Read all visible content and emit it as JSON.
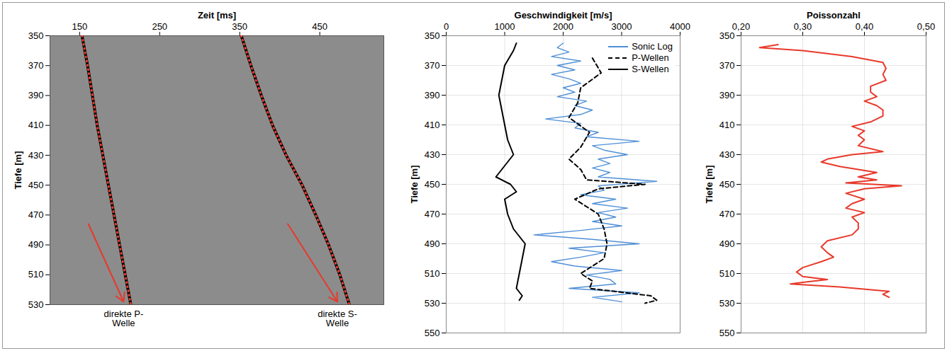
{
  "chart_data": [
    {
      "type": "line",
      "x_label": "Zeit [ms]",
      "y_label": "Tiefe [m]",
      "xlim": [
        113,
        530
      ],
      "xticks": [
        150,
        250,
        350,
        450
      ],
      "ylim": [
        350,
        530
      ],
      "yticks": [
        350,
        370,
        390,
        410,
        430,
        450,
        470,
        490,
        510,
        530
      ],
      "grid": false,
      "series": [
        {
          "color": "#e8392b",
          "line_style": "dotted",
          "x": [
            153,
            160,
            166,
            172,
            179,
            186,
            193,
            200,
            207,
            214
          ],
          "y": [
            350,
            370,
            390,
            410,
            430,
            450,
            470,
            490,
            510,
            530
          ]
        },
        {
          "color": "#e8392b",
          "line_style": "dotted",
          "x": [
            352,
            364,
            377,
            391,
            408,
            428,
            445,
            461,
            475,
            487
          ],
          "y": [
            350,
            370,
            390,
            410,
            430,
            450,
            470,
            490,
            510,
            530
          ]
        }
      ],
      "annotations": [
        {
          "text": "direkte P-Welle",
          "color": "#e8392b",
          "x1": 161,
          "y1": 476,
          "x2": 205,
          "y2": 528
        },
        {
          "text": "direkte S-Welle",
          "color": "#e8392b",
          "x1": 410,
          "y1": 476,
          "x2": 472,
          "y2": 528
        }
      ]
    },
    {
      "type": "line",
      "x_label": "Geschwindigkeit [m/s]",
      "y_label": "Tiefe [m]",
      "xlim": [
        0,
        4000
      ],
      "xticks": [
        0,
        1000,
        2000,
        3000,
        4000
      ],
      "ylim": [
        350,
        550
      ],
      "yticks": [
        350,
        370,
        390,
        410,
        430,
        450,
        470,
        490,
        510,
        530,
        550
      ],
      "grid": true,
      "legend": "upper right",
      "series": [
        {
          "name": "Sonic Log",
          "color": "#4f8fd6",
          "line_style": "solid",
          "x": [
            2000,
            1900,
            2100,
            1800,
            2300,
            1900,
            2200,
            1800,
            2100,
            2300,
            2000,
            2200,
            1900,
            2400,
            2200,
            2500,
            2300,
            1700,
            2300,
            2200,
            2600,
            2400,
            3300,
            2500,
            2700,
            3100,
            2600,
            2800,
            2500,
            2800,
            2600,
            3600,
            2600,
            2700,
            2300,
            2900,
            2500,
            3100,
            2600,
            2900,
            2500,
            3000,
            2300,
            1500,
            2500,
            3300,
            2100,
            2700,
            2300,
            1800,
            2200,
            3000,
            2400,
            2800,
            2900,
            2100,
            3300,
            2500,
            3000
          ],
          "y": [
            355,
            358,
            361,
            364,
            367,
            370,
            373,
            376,
            379,
            382,
            385,
            388,
            391,
            394,
            397,
            400,
            403,
            406,
            409,
            412,
            415,
            418,
            421,
            424,
            427,
            430,
            433,
            436,
            439,
            442,
            445,
            448,
            451,
            454,
            457,
            460,
            463,
            466,
            469,
            472,
            475,
            478,
            481,
            484,
            487,
            490,
            493,
            496,
            499,
            502,
            505,
            508,
            511,
            514,
            517,
            520,
            523,
            526,
            529
          ]
        },
        {
          "name": "P-Wellen",
          "color": "#000000",
          "line_style": "dashed",
          "x": [
            2500,
            2650,
            2300,
            2250,
            2100,
            2450,
            2300,
            2100,
            2300,
            2400,
            3400,
            2600,
            2200,
            2600,
            2700,
            2750,
            2700,
            2300,
            2500,
            2450,
            3500,
            3600,
            3400
          ],
          "y": [
            365,
            375,
            385,
            395,
            405,
            415,
            425,
            433,
            440,
            447,
            450,
            453,
            460,
            470,
            480,
            490,
            500,
            510,
            515,
            520,
            525,
            528,
            530
          ]
        },
        {
          "name": "S-Wellen",
          "color": "#000000",
          "line_style": "solid",
          "x": [
            1200,
            1150,
            1000,
            950,
            900,
            950,
            1000,
            1050,
            1150,
            950,
            850,
            1100,
            1200,
            1000,
            1050,
            1150,
            1350,
            1300,
            1250,
            1200,
            1300,
            1250
          ],
          "y": [
            355,
            360,
            370,
            380,
            390,
            400,
            410,
            420,
            430,
            440,
            445,
            450,
            455,
            460,
            470,
            480,
            490,
            500,
            510,
            520,
            525,
            528
          ]
        }
      ]
    },
    {
      "type": "line",
      "x_label": "Poissonzahl",
      "y_label": "Tiefe [m]",
      "xlim": [
        0.2,
        0.5
      ],
      "xticks": [
        {
          "value": 0.2,
          "label": "0,20"
        },
        {
          "value": 0.3,
          "label": "0,30"
        },
        {
          "value": 0.4,
          "label": "0,40"
        },
        {
          "value": 0.5,
          "label": "0,50"
        }
      ],
      "ylim": [
        350,
        550
      ],
      "yticks": [
        350,
        370,
        390,
        410,
        430,
        450,
        470,
        490,
        510,
        530,
        550
      ],
      "grid": true,
      "series": [
        {
          "color": "#e8392b",
          "line_style": "solid",
          "x": [
            0.26,
            0.23,
            0.3,
            0.38,
            0.43,
            0.435,
            0.43,
            0.435,
            0.41,
            0.41,
            0.42,
            0.4,
            0.42,
            0.43,
            0.43,
            0.41,
            0.38,
            0.4,
            0.39,
            0.4,
            0.39,
            0.43,
            0.38,
            0.34,
            0.33,
            0.36,
            0.42,
            0.39,
            0.42,
            0.37,
            0.46,
            0.4,
            0.37,
            0.4,
            0.38,
            0.37,
            0.4,
            0.38,
            0.39,
            0.39,
            0.38,
            0.34,
            0.33,
            0.34,
            0.35,
            0.33,
            0.3,
            0.29,
            0.3,
            0.34,
            0.3,
            0.28,
            0.36,
            0.44,
            0.43,
            0.44
          ],
          "y": [
            356,
            358,
            360,
            364,
            368,
            372,
            376,
            380,
            384,
            388,
            391,
            394,
            397,
            400,
            404,
            408,
            411,
            414,
            417,
            420,
            424,
            428,
            430,
            433,
            435,
            438,
            442,
            445,
            447,
            449,
            451,
            453,
            456,
            460,
            463,
            466,
            469,
            472,
            476,
            480,
            484,
            488,
            492,
            496,
            499,
            502,
            506,
            509,
            512,
            514,
            516,
            517,
            519,
            522,
            524,
            526
          ]
        }
      ]
    }
  ]
}
